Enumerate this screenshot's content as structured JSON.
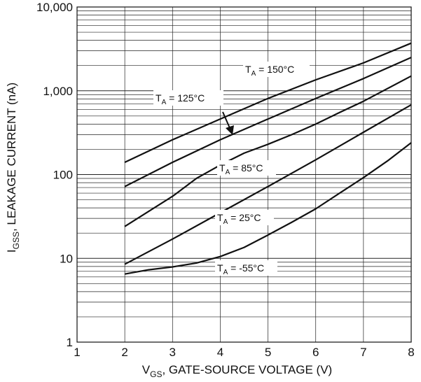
{
  "chart_data": {
    "type": "line",
    "title": "",
    "xlabel": {
      "main": "V",
      "sub": "GS",
      "rest": ", GATE-SOURCE VOLTAGE (V)"
    },
    "ylabel": {
      "main": "I",
      "sub": "GSS",
      "rest": ", LEAKAGE CURRENT (nA)"
    },
    "xlim": [
      1,
      8
    ],
    "ylim": [
      1,
      10000
    ],
    "y_scale": "log",
    "grid": true,
    "x_ticks": [
      "1",
      "2",
      "3",
      "4",
      "5",
      "6",
      "7",
      "8"
    ],
    "y_ticks": [
      "1",
      "10",
      "100",
      "1,000",
      "10,000"
    ],
    "series": [
      {
        "name": {
          "main": "T",
          "sub": "A",
          "rest": " = 150°C"
        },
        "x": [
          2,
          3,
          4,
          5,
          6,
          7,
          8
        ],
        "y": [
          140,
          260,
          460,
          810,
          1350,
          2150,
          3700
        ]
      },
      {
        "name": {
          "main": "T",
          "sub": "A",
          "rest": " = 125°C"
        },
        "x": [
          2,
          3,
          4,
          5,
          6,
          7,
          8
        ],
        "y": [
          72,
          140,
          260,
          460,
          810,
          1400,
          2500
        ]
      },
      {
        "name": {
          "main": "T",
          "sub": "A",
          "rest": " = 85°C"
        },
        "x": [
          2,
          3,
          3.5,
          4,
          4.5,
          5,
          5.5,
          6,
          6.5,
          7,
          8
        ],
        "y": [
          24,
          55,
          90,
          130,
          180,
          230,
          300,
          400,
          550,
          750,
          1500
        ]
      },
      {
        "name": {
          "main": "T",
          "sub": "A",
          "rest": " = 25°C"
        },
        "x": [
          2,
          3,
          4,
          5,
          6,
          7,
          8
        ],
        "y": [
          8.5,
          17,
          35,
          72,
          150,
          320,
          680
        ]
      },
      {
        "name": {
          "main": "T",
          "sub": "A",
          "rest": " = -55°C"
        },
        "x": [
          2,
          2.5,
          3,
          3.5,
          4,
          4.5,
          5,
          5.5,
          6,
          6.5,
          7,
          7.5,
          8
        ],
        "y": [
          6.5,
          7.3,
          7.9,
          8.8,
          10.5,
          13.5,
          19,
          27,
          39,
          60,
          92,
          145,
          240
        ]
      }
    ]
  }
}
